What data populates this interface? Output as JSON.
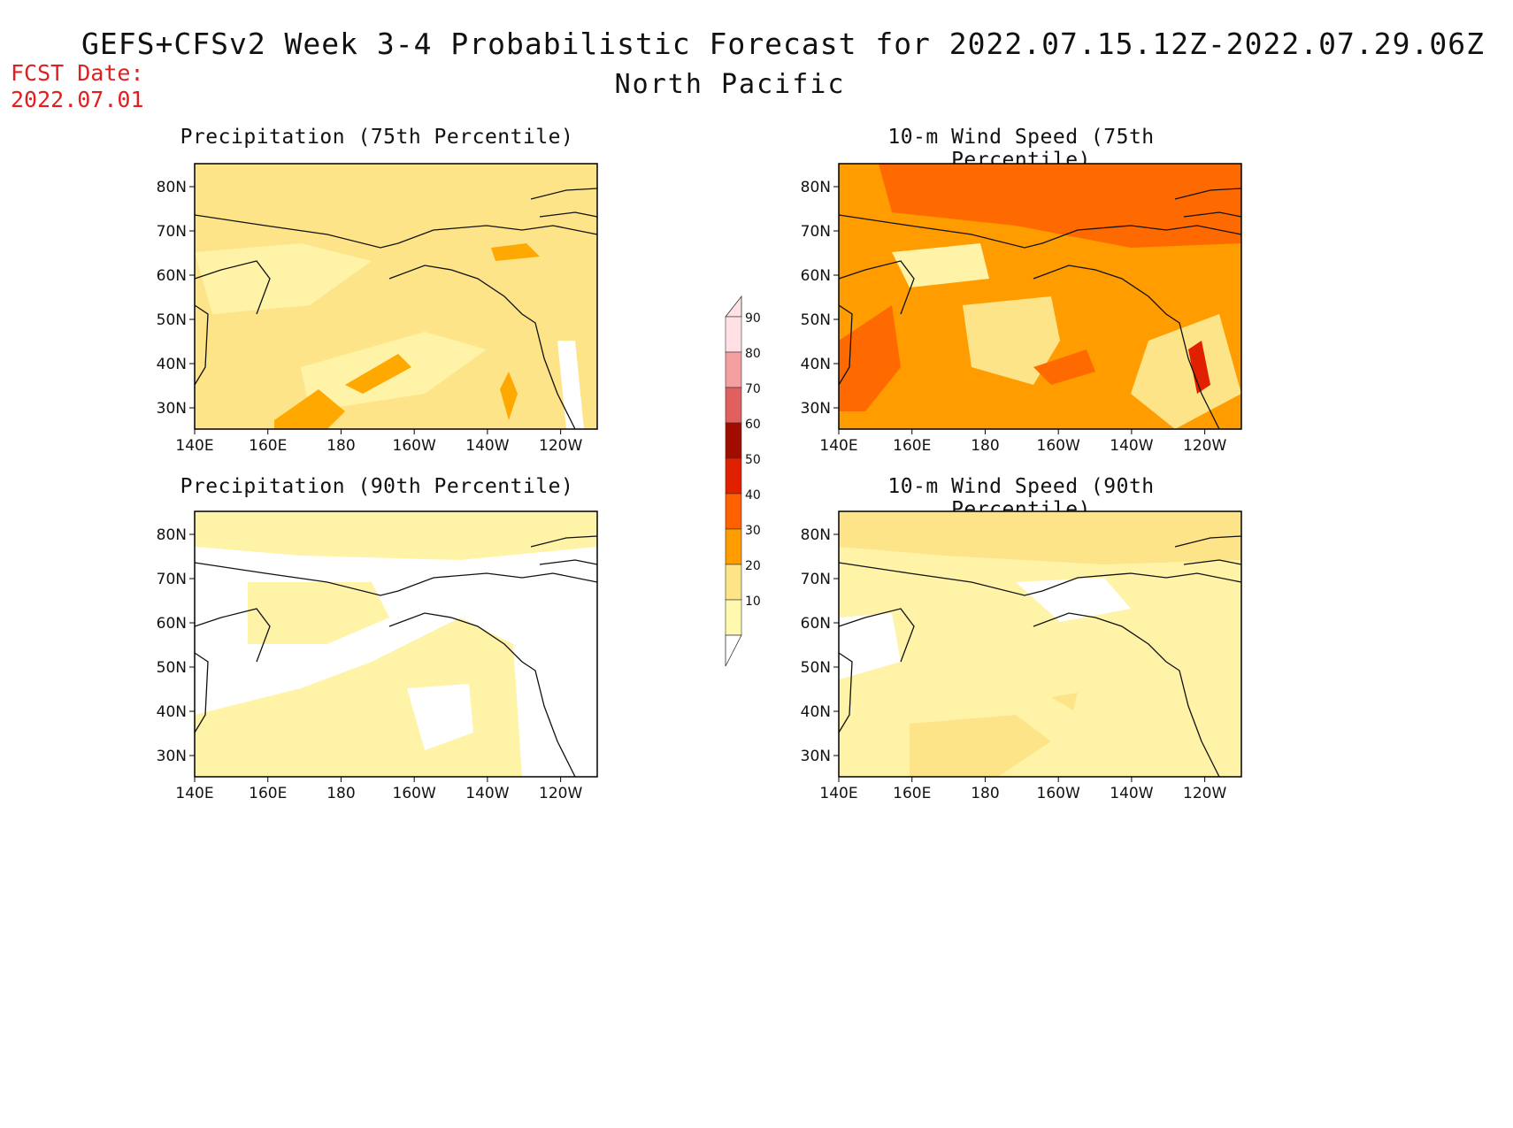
{
  "header": {
    "title": "GEFS+CFSv2 Week 3-4 Probabilistic Forecast for 2022.07.15.12Z-2022.07.29.06Z",
    "region": "North Pacific",
    "fcst_label": "FCST Date:",
    "fcst_date": "2022.07.01"
  },
  "panels": [
    {
      "title": "Precipitation (75th Percentile)",
      "base_color": "#fde488"
    },
    {
      "title": "10-m Wind Speed (75th Percentile)",
      "base_color": "#ff9c00"
    },
    {
      "title": "Precipitation (90th Percentile)",
      "base_color": "#ffffff"
    },
    {
      "title": "10-m Wind Speed (90th Percentile)",
      "base_color": "#fff3a8"
    }
  ],
  "axes": {
    "lon_ticks": [
      "140E",
      "160E",
      "180",
      "160W",
      "140W",
      "120W"
    ],
    "lat_ticks": [
      "80N",
      "70N",
      "60N",
      "50N",
      "40N",
      "30N"
    ]
  },
  "colorbar": {
    "levels": [
      "90",
      "80",
      "70",
      "60",
      "50",
      "40",
      "30",
      "20",
      "10"
    ],
    "colors": [
      "#ffe0e4",
      "#f4a0a0",
      "#e06060",
      "#a00c00",
      "#e02000",
      "#ff6000",
      "#ff9c00",
      "#fde488",
      "#fff9b0"
    ]
  }
}
